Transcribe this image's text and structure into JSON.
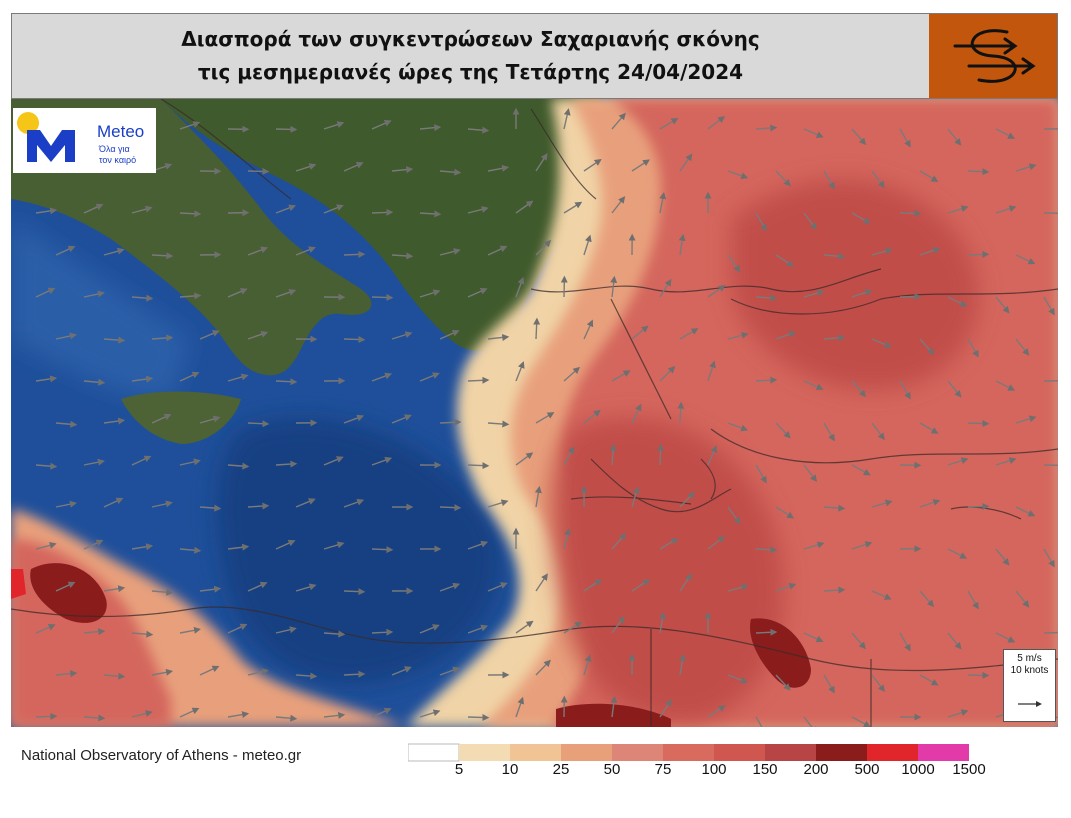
{
  "title": {
    "line1": "Διασπορά των συγκεντρώσεων Σαχαριανής σκόνης",
    "line2": "τις μεσημεριανές ώρες της Τετάρτης 24/04/2024"
  },
  "brand_icon": "swirl-arrows-icon",
  "logo": {
    "name": "Meteo",
    "tagline_line1": "Όλα για",
    "tagline_line2": "τον καιρό",
    "icon": "meteo-m-logo-icon"
  },
  "wind_legend": {
    "speed_ms": "5 m/s",
    "speed_knots": "10 knots",
    "icon": "wind-arrow-icon"
  },
  "credit": "National Observatory of Athens - meteo.gr",
  "colorbar": {
    "labels": [
      "5",
      "10",
      "25",
      "50",
      "75",
      "100",
      "150",
      "200",
      "500",
      "1000",
      "1500"
    ],
    "colors": [
      "#ffffff",
      "#f3dcb3",
      "#f0c495",
      "#e8a07b",
      "#dd8677",
      "#d96a5e",
      "#cf5750",
      "#b84545",
      "#8a1c1c",
      "#e0262a",
      "#e23aa8"
    ]
  },
  "map_colors": {
    "sea": "#1f4f9a",
    "deep_sea": "#153f82",
    "land": "#3f5a2c",
    "dust_light": "#f0d3a6",
    "dust_mid": "#e8a07b",
    "dust_high": "#d4665d",
    "dust_max": "#8a1c1c"
  }
}
